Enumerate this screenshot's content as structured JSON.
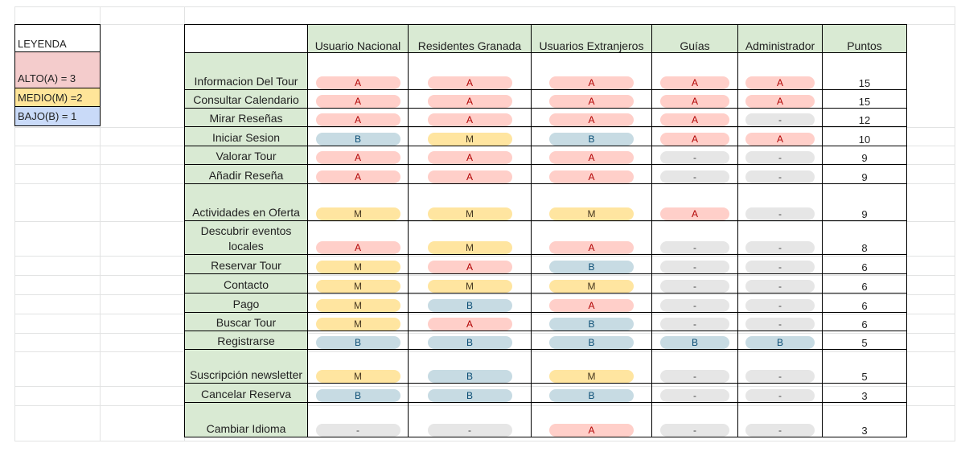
{
  "legend": {
    "title": "LEYENDA",
    "alto": "ALTO(A) = 3",
    "medio": "MEDIO(M) =2",
    "bajo": "BAJO(B) = 1",
    "colors": {
      "alto": "#f4cccc",
      "medio": "#ffe599",
      "bajo": "#c9daf8"
    }
  },
  "table": {
    "headers": [
      "Usuario Nacional",
      "Residentes Granada",
      "Usuarios Extranjeros",
      "Guías",
      "Administrador",
      "Puntos"
    ],
    "rows": [
      {
        "feature": "Informacion Del Tour",
        "values": [
          "A",
          "A",
          "A",
          "A",
          "A"
        ],
        "points": "15"
      },
      {
        "feature": "Consultar Calendario",
        "values": [
          "A",
          "A",
          "A",
          "A",
          "A"
        ],
        "points": "15"
      },
      {
        "feature": "Mirar Reseñas",
        "values": [
          "A",
          "A",
          "A",
          "A",
          "-"
        ],
        "points": "12"
      },
      {
        "feature": "Iniciar Sesion",
        "values": [
          "B",
          "M",
          "B",
          "A",
          "A"
        ],
        "points": "10"
      },
      {
        "feature": "Valorar Tour",
        "values": [
          "A",
          "A",
          "A",
          "-",
          "-"
        ],
        "points": "9"
      },
      {
        "feature": "Añadir Reseña",
        "values": [
          "A",
          "A",
          "A",
          "-",
          "-"
        ],
        "points": "9"
      },
      {
        "feature": "Actividades en Oferta",
        "values": [
          "M",
          "M",
          "M",
          "A",
          "-"
        ],
        "points": "9"
      },
      {
        "feature": "Descubrir eventos locales",
        "values": [
          "A",
          "M",
          "A",
          "-",
          "-"
        ],
        "points": "8"
      },
      {
        "feature": "Reservar Tour",
        "values": [
          "M",
          "A",
          "B",
          "-",
          "-"
        ],
        "points": "6"
      },
      {
        "feature": "Contacto",
        "values": [
          "M",
          "M",
          "M",
          "-",
          "-"
        ],
        "points": "6"
      },
      {
        "feature": "Pago",
        "values": [
          "M",
          "B",
          "A",
          "-",
          "-"
        ],
        "points": "6"
      },
      {
        "feature": "Buscar Tour",
        "values": [
          "M",
          "A",
          "B",
          "-",
          "-"
        ],
        "points": "6"
      },
      {
        "feature": "Registrarse",
        "values": [
          "B",
          "B",
          "B",
          "B",
          "B"
        ],
        "points": "5"
      },
      {
        "feature": "Suscripción newsletter",
        "values": [
          "M",
          "B",
          "M",
          "-",
          "-"
        ],
        "points": "5"
      },
      {
        "feature": "Cancelar Reserva",
        "values": [
          "B",
          "B",
          "B",
          "-",
          "-"
        ],
        "points": "3"
      },
      {
        "feature": "Cambiar Idioma",
        "values": [
          "-",
          "-",
          "A",
          "-",
          "-"
        ],
        "points": "3"
      }
    ]
  }
}
